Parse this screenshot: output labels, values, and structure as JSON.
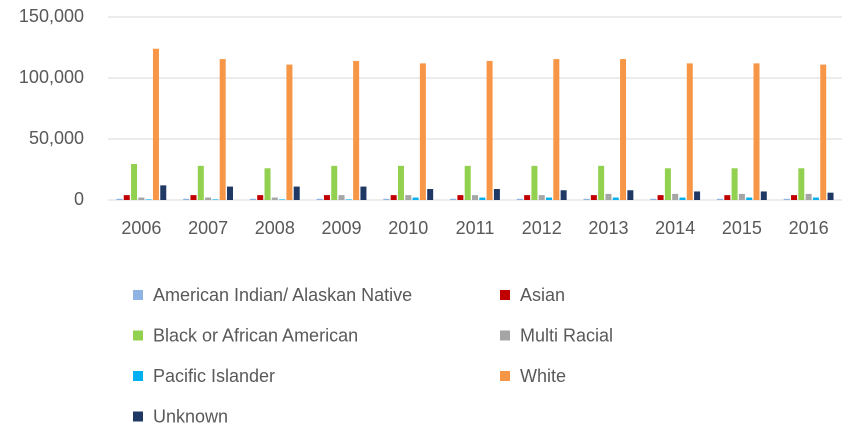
{
  "chart_data": {
    "type": "bar",
    "categories": [
      "2006",
      "2007",
      "2008",
      "2009",
      "2010",
      "2011",
      "2012",
      "2013",
      "2014",
      "2015",
      "2016"
    ],
    "series": [
      {
        "name": "American Indian/ Alaskan Native",
        "color": "#8db4e2",
        "values": [
          1000,
          1000,
          1000,
          1000,
          1000,
          1000,
          1000,
          1000,
          1000,
          1000,
          1000
        ]
      },
      {
        "name": "Asian",
        "color": "#c00000",
        "values": [
          4000,
          4000,
          4000,
          4000,
          4000,
          4000,
          4000,
          4000,
          4000,
          4000,
          4000
        ]
      },
      {
        "name": "Black or African American",
        "color": "#92d050",
        "values": [
          29500,
          28000,
          26000,
          28000,
          28000,
          28000,
          28000,
          28000,
          26000,
          26000,
          26000
        ]
      },
      {
        "name": "Multi Racial",
        "color": "#a5a5a5",
        "values": [
          2000,
          2000,
          2000,
          4000,
          4000,
          4000,
          4000,
          5000,
          5000,
          5000,
          5000
        ]
      },
      {
        "name": "Pacific Islander",
        "color": "#00b0f0",
        "values": [
          500,
          500,
          500,
          500,
          2000,
          2000,
          2000,
          2000,
          2000,
          2000,
          2000
        ]
      },
      {
        "name": "White",
        "color": "#f79646",
        "values": [
          124000,
          115500,
          111000,
          114000,
          112000,
          114000,
          115500,
          115500,
          112000,
          112000,
          111000
        ]
      },
      {
        "name": "Unknown",
        "color": "#1f3864",
        "values": [
          12000,
          11000,
          11000,
          11000,
          9000,
          9000,
          8000,
          8000,
          7000,
          7000,
          6000
        ]
      }
    ],
    "ylim": [
      0,
      150000
    ],
    "yticks": [
      0,
      {
        "value": 50000,
        "label": "50,000"
      },
      {
        "value": 100000,
        "label": "100,000"
      },
      {
        "value": 150000,
        "label": "150,000"
      }
    ],
    "grid": true,
    "legend": "bottom"
  }
}
